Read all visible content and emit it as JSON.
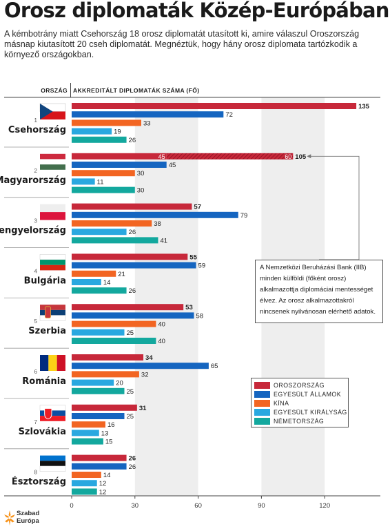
{
  "title": "Orosz diplomaták Közép-Európában",
  "subtitle": "A kémbotrány miatt Csehország 18 orosz diplomatát utasított ki, amire válaszul Oroszország másnap kiutasított 20 cseh diplomatát. Megnéztük, hogy hány orosz diplomata tartózkodik a környező országokban.",
  "column_headers": {
    "country": "ORSZÁG",
    "value": "AKKREDITÁLT DIPLOMATÁK SZÁMA (FŐ)"
  },
  "note": "A Nemzetközi Beruházási Bank (IIB) minden külföldi (főként orosz) alkalmazottja diplomáciai mentességet élvez. Az orosz alkalmazottakról nincsenek nyilvánosan elérhető adatok.",
  "logo": {
    "line1": "Szabad",
    "line2": "Európa"
  },
  "colors": {
    "oroszorszag": "#c7283a",
    "usa": "#1565c0",
    "kina": "#f26522",
    "uk": "#29a8e0",
    "nemet": "#13a89e",
    "band": "#eeeeee",
    "note_line": "#777777"
  },
  "chart_data": {
    "type": "bar",
    "orientation": "horizontal",
    "categories": [
      "Csehország",
      "Magyarország",
      "Lengyelország",
      "Bulgária",
      "Szerbia",
      "Románia",
      "Szlovákia",
      "Észtország"
    ],
    "rank": [
      "1",
      "2",
      "3",
      "4",
      "5",
      "6",
      "7",
      "8"
    ],
    "flags": [
      "czech-flag",
      "hungary-flag",
      "poland-flag",
      "bulgaria-flag",
      "serbia-flag",
      "romania-flag",
      "slovakia-flag",
      "estonia-flag"
    ],
    "series": [
      {
        "name": "OROSZORSZÁG",
        "color": "#c7283a",
        "values": [
          135,
          105,
          57,
          55,
          53,
          34,
          31,
          26
        ]
      },
      {
        "name": "EGYESÜLT ÁLLAMOK",
        "color": "#1565c0",
        "values": [
          72,
          45,
          79,
          59,
          58,
          65,
          25,
          26
        ]
      },
      {
        "name": "KÍNA",
        "color": "#f26522",
        "values": [
          33,
          30,
          38,
          21,
          40,
          32,
          16,
          14
        ]
      },
      {
        "name": "EGYESÜLT KIRÁLYSÁG",
        "color": "#29a8e0",
        "values": [
          19,
          11,
          26,
          14,
          25,
          20,
          13,
          12
        ]
      },
      {
        "name": "NÉMETORSZÁG",
        "color": "#13a89e",
        "values": [
          26,
          30,
          41,
          26,
          40,
          25,
          15,
          12
        ]
      }
    ],
    "hungary_split": {
      "left": 45,
      "right": 60,
      "left_label": "45",
      "right_label": "60"
    },
    "xticks": [
      0,
      30,
      60,
      90,
      120
    ],
    "xlim": [
      0,
      150
    ],
    "grid": "alternating vertical bands"
  }
}
